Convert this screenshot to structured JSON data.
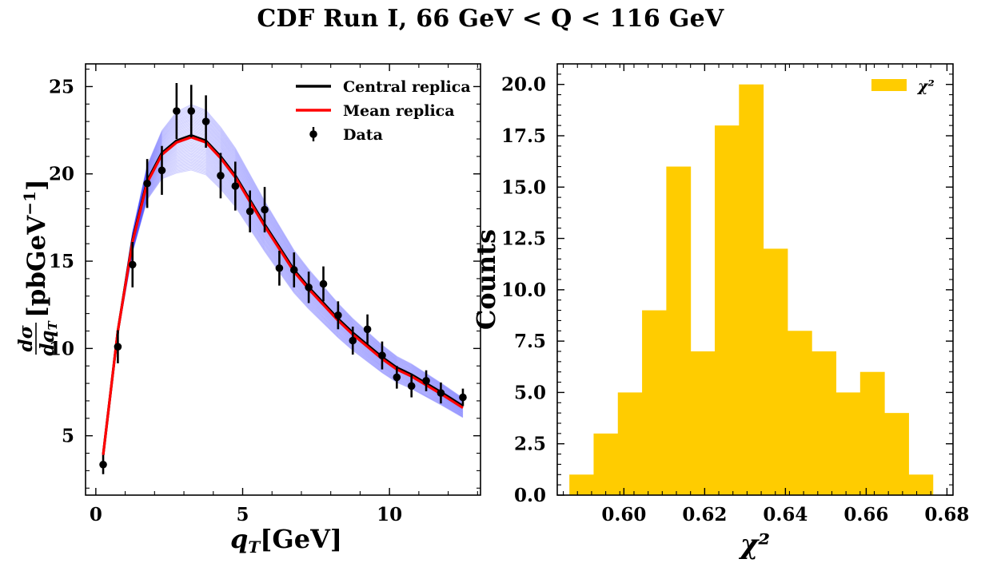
{
  "title": "CDF Run I, 66 GeV < Q < 116 GeV",
  "colors": {
    "central": "#000000",
    "mean": "#ff0000",
    "replicas": "#3030ff",
    "data": "#000000",
    "hist": "#ffcc00"
  },
  "chart_data": [
    {
      "type": "line",
      "xlabel": "qT[GeV]",
      "ylabel": "dσ/dqT [pbGeV^-1]",
      "xlim": [
        -0.35,
        13.1
      ],
      "ylim": [
        1.6,
        26.3
      ],
      "xticks": [
        0,
        5,
        10
      ],
      "yticks": [
        5,
        10,
        15,
        20,
        25
      ],
      "legend_position": "top-right",
      "legend": [
        "Central replica",
        "Mean replica",
        "Data"
      ],
      "x": [
        0.25,
        0.75,
        1.25,
        1.75,
        2.25,
        2.75,
        3.25,
        3.75,
        4.25,
        4.75,
        5.25,
        5.75,
        6.25,
        6.75,
        7.25,
        7.75,
        8.25,
        8.75,
        9.25,
        9.75,
        10.25,
        10.75,
        11.25,
        11.75,
        12.5
      ],
      "series": [
        {
          "name": "Central replica",
          "values": [
            3.9,
            11.0,
            16.2,
            19.6,
            21.2,
            21.9,
            22.2,
            21.9,
            21.0,
            19.9,
            18.5,
            17.1,
            15.8,
            14.5,
            13.5,
            12.6,
            11.7,
            10.9,
            10.2,
            9.5,
            8.9,
            8.5,
            8.0,
            7.5,
            6.7
          ]
        },
        {
          "name": "Mean replica",
          "values": [
            3.9,
            11.0,
            16.1,
            19.5,
            21.1,
            21.8,
            22.1,
            21.8,
            20.9,
            19.8,
            18.4,
            17.0,
            15.7,
            14.4,
            13.4,
            12.5,
            11.6,
            10.8,
            10.1,
            9.4,
            8.8,
            8.4,
            7.9,
            7.4,
            6.6
          ]
        },
        {
          "name": "Data",
          "values": [
            3.35,
            10.1,
            14.8,
            19.45,
            20.2,
            23.6,
            23.6,
            23.0,
            19.9,
            19.3,
            17.85,
            17.95,
            14.6,
            14.5,
            13.5,
            13.7,
            11.9,
            10.45,
            11.1,
            9.6,
            8.35,
            7.85,
            8.15,
            7.45,
            7.2
          ],
          "errors": [
            0.55,
            0.95,
            1.3,
            1.4,
            1.4,
            1.6,
            1.5,
            1.5,
            1.3,
            1.4,
            1.2,
            1.3,
            1.0,
            1.0,
            0.9,
            1.0,
            0.8,
            0.8,
            0.85,
            0.8,
            0.65,
            0.65,
            0.6,
            0.6,
            0.5
          ]
        }
      ]
    },
    {
      "type": "bar",
      "xlabel": "χ²",
      "ylabel": "Counts",
      "xlim": [
        0.5835,
        0.6815
      ],
      "ylim": [
        0,
        21
      ],
      "xticks": [
        0.6,
        0.62,
        0.64,
        0.66,
        0.68
      ],
      "xtick_labels": [
        "0.60",
        "0.62",
        "0.64",
        "0.66",
        "0.68"
      ],
      "yticks": [
        0.0,
        2.5,
        5.0,
        7.5,
        10.0,
        12.5,
        15.0,
        17.5,
        20.0
      ],
      "ytick_labels": [
        "0.0",
        "2.5",
        "5.0",
        "7.5",
        "10.0",
        "12.5",
        "15.0",
        "17.5",
        "20.0"
      ],
      "legend_position": "top-right",
      "legend": [
        "χ²"
      ],
      "bin_edges": [
        0.5865,
        0.5925,
        0.5985,
        0.6045,
        0.6105,
        0.6165,
        0.6225,
        0.6285,
        0.6345,
        0.6405,
        0.6465,
        0.6525,
        0.6585,
        0.6645,
        0.6705,
        0.6765
      ],
      "values": [
        1,
        3,
        5,
        9,
        16,
        7,
        18,
        20,
        12,
        8,
        7,
        5,
        6,
        4,
        1
      ]
    }
  ]
}
